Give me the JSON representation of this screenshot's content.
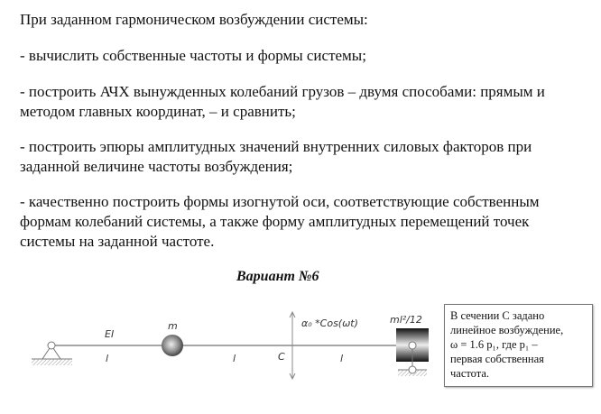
{
  "task": {
    "intro": "При заданном гармоническом возбуждении системы:",
    "items": [
      [
        "- вычислить собственные частоты и формы системы;"
      ],
      [
        "- построить АЧХ вынужденных колебаний грузов – двумя способами: прямым и",
        "методом главных координат, – и сравнить;"
      ],
      [
        "- построить эпюры амплитудных значений внутренних силовых факторов при",
        "заданной величине частоты возбуждения;"
      ],
      [
        "- качественно построить формы изогнутой оси, соответствующие собственным",
        "формам колебаний системы, а также форму амплитудных перемещений точек",
        "системы на заданной частоте."
      ]
    ]
  },
  "variant": {
    "title": "Вариант №6",
    "diagram": {
      "stiffness": "EI",
      "mass": "m",
      "span": "l",
      "section": "C",
      "excitation": "α₀ *Cos(ωt)",
      "inertia": "ml²/12"
    },
    "note": {
      "lines": [
        "В сечении C задано",
        "линейное возбуждение,",
        "ω = 1.6 p₁,   где p₁ –",
        "первая собственная",
        "частота."
      ]
    }
  }
}
